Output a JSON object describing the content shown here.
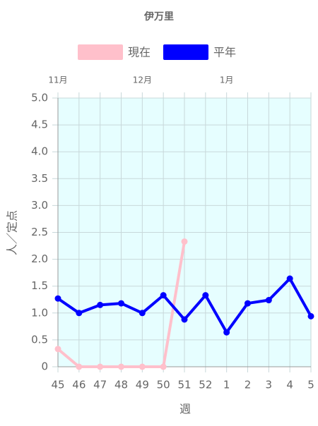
{
  "chart_data": {
    "type": "line",
    "title": "伊万里",
    "categories": [
      "45",
      "46",
      "47",
      "48",
      "49",
      "50",
      "51",
      "52",
      "1",
      "2",
      "3",
      "4",
      "5"
    ],
    "top_categories": [
      "11月",
      null,
      null,
      null,
      "12月",
      null,
      null,
      null,
      "1月",
      null,
      null,
      null,
      null
    ],
    "x_label": "週",
    "y_label": "人／定点",
    "ylim": [
      0,
      5
    ],
    "yticks": [
      0,
      0.5,
      {
        "value": 1,
        "label": "1.0"
      },
      1.5,
      {
        "value": 2,
        "label": "2.0"
      },
      2.5,
      {
        "value": 3,
        "label": "3.0"
      },
      3.5,
      {
        "value": 4,
        "label": "4.0"
      },
      4.5,
      {
        "value": 5,
        "label": "5.0"
      }
    ],
    "grid": true,
    "background": "#e6feff",
    "series": [
      {
        "name": "現在",
        "color": "#ffc0cb",
        "values": [
          0.33,
          0,
          0,
          0,
          0,
          0,
          2.33,
          null,
          null,
          null,
          null,
          null,
          null
        ]
      },
      {
        "name": "平年",
        "color": "#0000ff",
        "values": [
          1.27,
          1.0,
          1.15,
          1.18,
          1.0,
          1.33,
          0.88,
          1.33,
          0.64,
          1.18,
          1.24,
          1.64,
          0.94
        ]
      }
    ]
  }
}
